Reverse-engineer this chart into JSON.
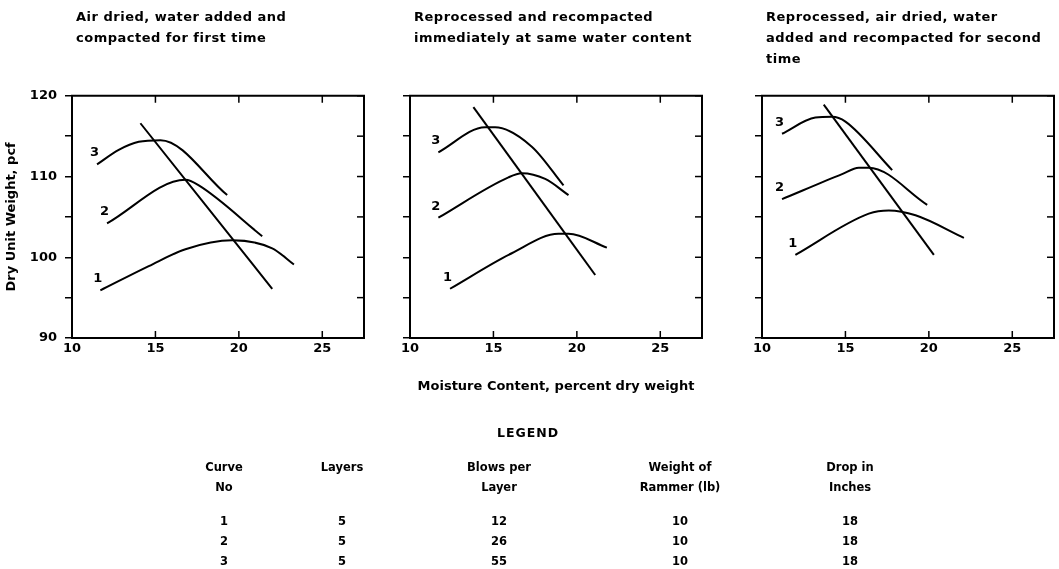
{
  "chart_data": [
    {
      "type": "line",
      "title": "Air dried, water added and compacted for first time",
      "ylabel": "Dry Unit Weight, pcf",
      "xlim": [
        10,
        27.5
      ],
      "xticks": [
        10,
        15,
        20,
        25
      ],
      "ylim": [
        90,
        120
      ],
      "yticks": [
        90,
        {
          "value": 95,
          "label": null
        },
        100,
        {
          "value": 105,
          "label": null
        },
        110,
        {
          "value": 115,
          "label": null
        },
        120
      ],
      "grid": false,
      "legend": false,
      "marker": "none",
      "series": [
        {
          "name": "1",
          "color": "#000000",
          "x": [
            11.7,
            14.6,
            16.8,
            19.6,
            22.0,
            23.3
          ],
          "values": [
            95.9,
            98.9,
            101.0,
            102.1,
            101.1,
            99.1
          ]
        },
        {
          "name": "2",
          "color": "#000000",
          "x": [
            12.1,
            16.8,
            17.6,
            21.4
          ],
          "values": [
            104.2,
            109.6,
            108.9,
            102.6
          ]
        },
        {
          "name": "3",
          "color": "#000000",
          "x": [
            11.5,
            12.8,
            14.0,
            15.3,
            19.3
          ],
          "values": [
            111.5,
            113.3,
            114.3,
            114.5,
            107.7
          ]
        },
        {
          "color": "#000000",
          "x": [
            14.1,
            22.0
          ],
          "values": [
            116.6,
            96.1
          ]
        }
      ]
    },
    {
      "type": "line",
      "title": "Reprocessed and recompacted immediately at same water content",
      "xlabel": "Moisture Content, percent dry weight",
      "xlim": [
        10,
        27.5
      ],
      "xticks": [
        10,
        15,
        20,
        25
      ],
      "ylim": [
        90,
        120
      ],
      "yticks": [
        90,
        {
          "value": 95,
          "label": null
        },
        100,
        {
          "value": 105,
          "label": null
        },
        110,
        {
          "value": 115,
          "label": null
        },
        120
      ],
      "tick_labels": "x",
      "grid": false,
      "legend": false,
      "marker": "none",
      "series": [
        {
          "name": "1",
          "color": "#000000",
          "x": [
            12.4,
            16.1,
            18.9,
            19.5,
            21.8
          ],
          "values": [
            96.1,
            100.5,
            102.9,
            102.9,
            101.2
          ]
        },
        {
          "name": "2",
          "color": "#000000",
          "x": [
            11.7,
            15.9,
            16.7,
            18.1,
            19.5
          ],
          "values": [
            104.9,
            109.9,
            110.4,
            109.7,
            107.7
          ]
        },
        {
          "name": "3",
          "color": "#000000",
          "x": [
            11.7,
            14.5,
            15.1,
            17.3,
            19.2
          ],
          "values": [
            113.0,
            116.1,
            116.1,
            113.7,
            108.9
          ]
        },
        {
          "color": "#000000",
          "x": [
            13.8,
            21.1
          ],
          "values": [
            118.6,
            97.8
          ]
        }
      ]
    },
    {
      "type": "line",
      "title": "Reprocessed, air dried, water added and recompacted for second time",
      "xlim": [
        10,
        27.5
      ],
      "xticks": [
        10,
        15,
        20,
        25
      ],
      "ylim": [
        90,
        120
      ],
      "yticks": [
        90,
        {
          "value": 95,
          "label": null
        },
        100,
        {
          "value": 105,
          "label": null
        },
        110,
        {
          "value": 115,
          "label": null
        },
        120
      ],
      "tick_labels": "x",
      "grid": false,
      "legend": false,
      "marker": "none",
      "series": [
        {
          "name": "1",
          "color": "#000000",
          "x": [
            12.0,
            16.4,
            17.6,
            19.2,
            22.1
          ],
          "values": [
            100.3,
            105.4,
            105.8,
            105.2,
            102.4
          ]
        },
        {
          "name": "2",
          "color": "#000000",
          "x": [
            11.2,
            14.8,
            15.8,
            16.4,
            19.9
          ],
          "values": [
            107.2,
            110.3,
            111.1,
            111.1,
            106.5
          ]
        },
        {
          "name": "3",
          "color": "#000000",
          "x": [
            11.2,
            13.2,
            14.2,
            15.0,
            17.8
          ],
          "values": [
            115.3,
            117.3,
            117.4,
            116.8,
            110.8
          ]
        },
        {
          "color": "#000000",
          "x": [
            13.7,
            20.3
          ],
          "values": [
            118.9,
            100.3
          ]
        }
      ]
    },
    {
      "type": "other",
      "title": "LEGEND",
      "annotations": [
        "Curve\nNo",
        "Layers",
        "Blows per\nLayer",
        "Weight of\nRammer (lb)",
        "Drop in\nInches",
        "1",
        "5",
        "12",
        "10",
        "18",
        "2",
        "5",
        "26",
        "10",
        "18",
        "3",
        "5",
        "55",
        "10",
        "18"
      ]
    }
  ]
}
